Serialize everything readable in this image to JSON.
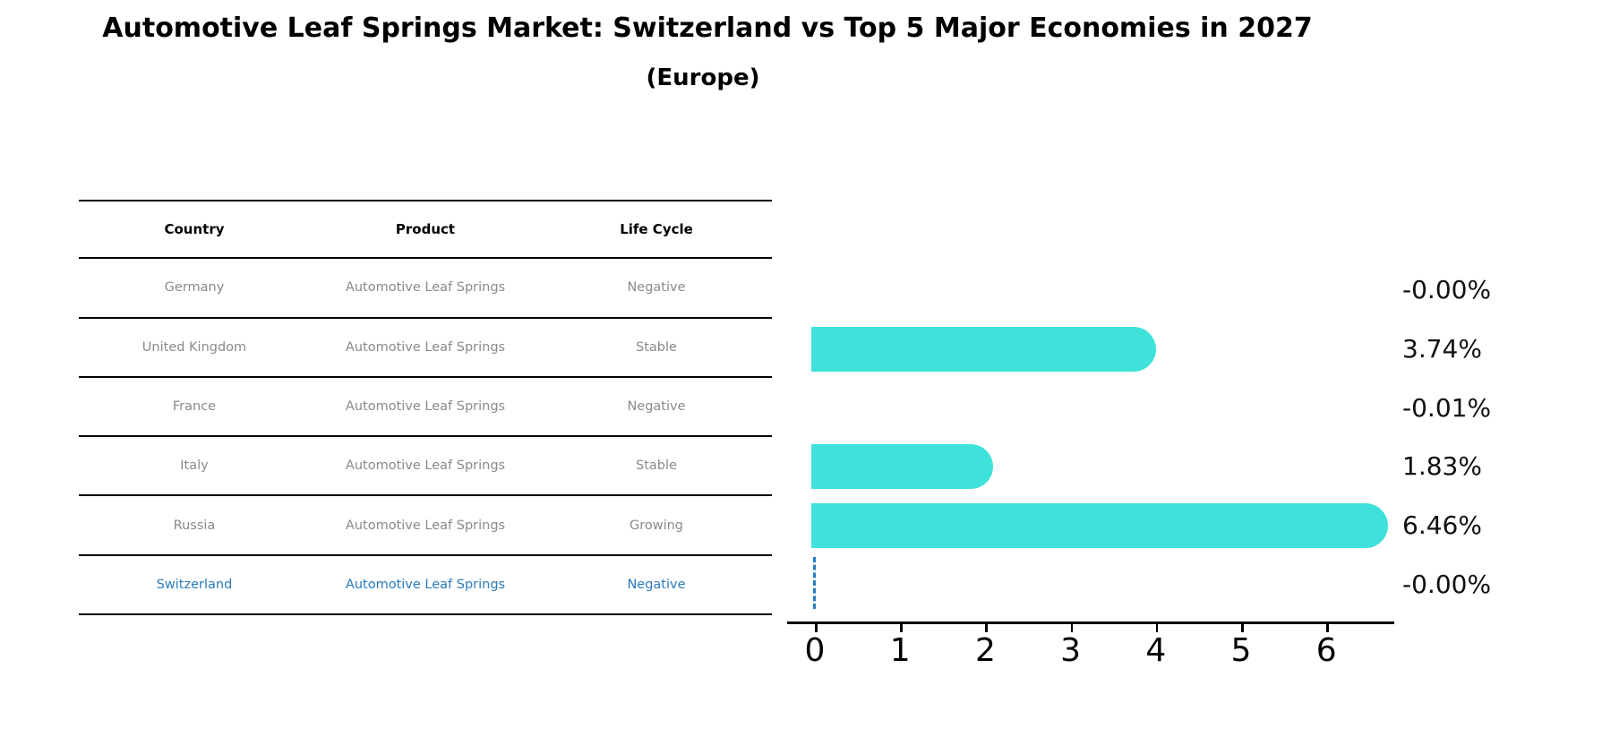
{
  "title": "Automotive Leaf Springs Market: Switzerland vs Top 5 Major Economies in 2027",
  "subtitle": "(Europe)",
  "table": {
    "headers": [
      "Country",
      "Product",
      "Life Cycle"
    ],
    "rows": [
      {
        "country": "Germany",
        "product": "Automotive Leaf Springs",
        "life_cycle": "Negative",
        "highlight": false
      },
      {
        "country": "United Kingdom",
        "product": "Automotive Leaf Springs",
        "life_cycle": "Stable",
        "highlight": false
      },
      {
        "country": "France",
        "product": "Automotive Leaf Springs",
        "life_cycle": "Negative",
        "highlight": false
      },
      {
        "country": "Italy",
        "product": "Automotive Leaf Springs",
        "life_cycle": "Stable",
        "highlight": false
      },
      {
        "country": "Russia",
        "product": "Automotive Leaf Springs",
        "life_cycle": "Growing",
        "highlight": false
      },
      {
        "country": "Switzerland",
        "product": "Automotive Leaf Springs",
        "life_cycle": "Negative",
        "highlight": true
      }
    ]
  },
  "chart_data": {
    "type": "bar",
    "orientation": "horizontal",
    "categories": [
      "Germany",
      "United Kingdom",
      "France",
      "Italy",
      "Russia",
      "Switzerland"
    ],
    "values": [
      -0.0,
      3.74,
      -0.01,
      1.83,
      6.46,
      -0.0
    ],
    "value_labels": [
      "-0.00%",
      "3.74%",
      "-0.01%",
      "1.83%",
      "6.46%",
      "-0.00%"
    ],
    "x_ticks": [
      "0",
      "1",
      "2",
      "3",
      "4",
      "5",
      "6"
    ],
    "xlim": [
      -0.33,
      6.8
    ],
    "grid": false,
    "legend": false,
    "bar_color": "#3fe2da",
    "highlight_index": 5,
    "highlight_color": "#2b7bbd",
    "title": "Automotive Leaf Springs Market: Switzerland vs Top 5 Major Economies in 2027 (Europe)",
    "xlabel": "",
    "ylabel": ""
  }
}
